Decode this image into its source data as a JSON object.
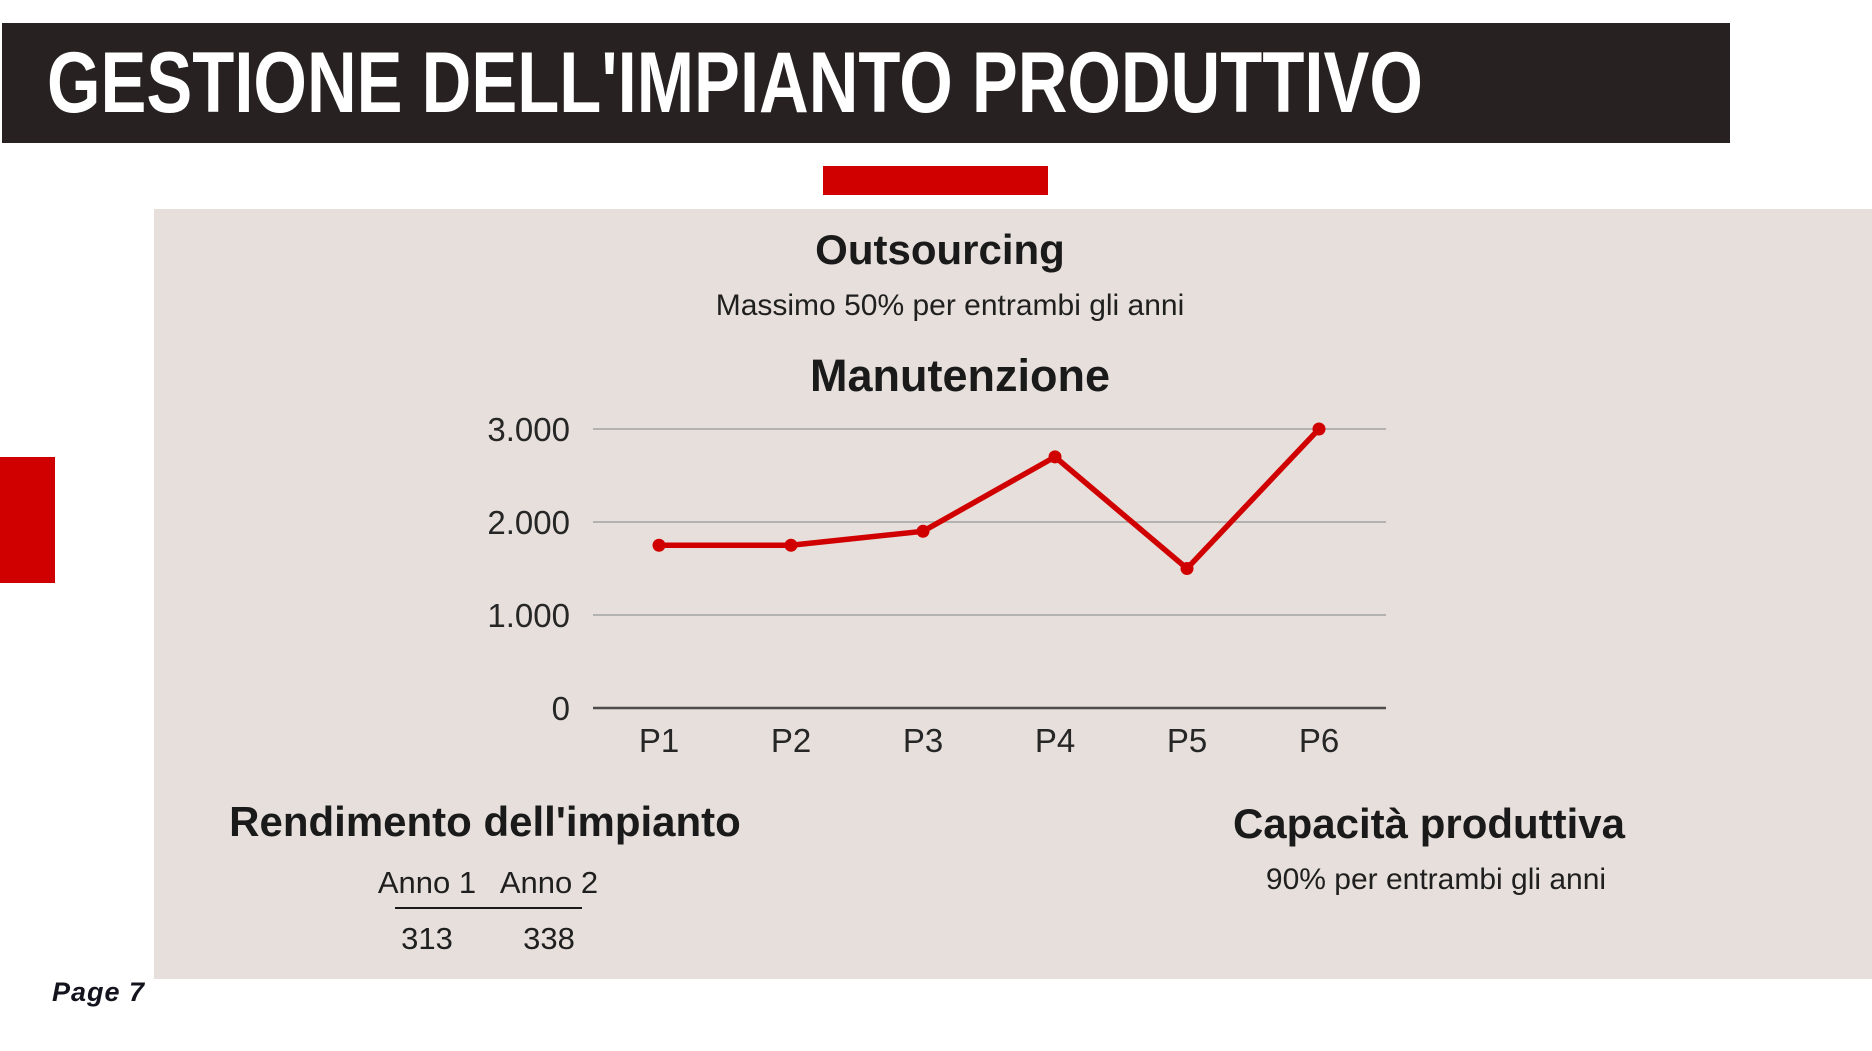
{
  "slide": {
    "title": "GESTIONE DELL'IMPIANTO PRODUTTIVO",
    "page_label": "Page 7",
    "colors": {
      "header_bg": "#272122",
      "accent_red": "#d10000",
      "panel_bg": "#e6dfdb"
    }
  },
  "sections": {
    "outsourcing": {
      "title": "Outsourcing",
      "subtitle": "Massimo 50% per entrambi gli anni"
    },
    "rendimento": {
      "title": "Rendimento dell'impianto",
      "table": {
        "headers": [
          "Anno 1",
          "Anno 2"
        ],
        "values": [
          "313",
          "338"
        ]
      }
    },
    "capacita": {
      "title": "Capacità produttiva",
      "subtitle": "90% per entrambi gli anni"
    }
  },
  "chart_data": {
    "type": "line",
    "title": "Manutenzione",
    "categories": [
      "P1",
      "P2",
      "P3",
      "P4",
      "P5",
      "P6"
    ],
    "series": [
      {
        "name": "Manutenzione",
        "values": [
          1750,
          1750,
          1900,
          2700,
          1500,
          3000
        ],
        "color": "#d10000"
      }
    ],
    "ylim": [
      0,
      3000
    ],
    "yticks": [
      0,
      1000,
      2000,
      3000
    ],
    "ytick_labels": [
      "0",
      "1.000",
      "2.000",
      "3.000"
    ],
    "xlabel": "",
    "ylabel": "",
    "grid": true,
    "legend": false
  }
}
